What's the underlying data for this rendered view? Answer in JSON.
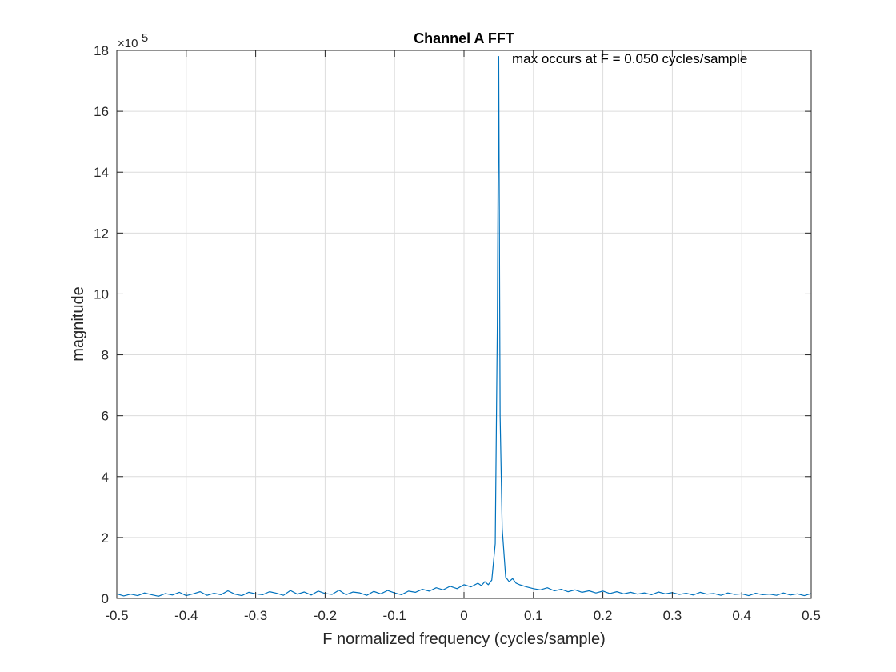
{
  "chart_data": {
    "type": "line",
    "title": "Channel A FFT",
    "xlabel": "F normalized frequency (cycles/sample)",
    "ylabel": "magnitude",
    "xlim": [
      -0.5,
      0.5
    ],
    "ylim": [
      0,
      1800000
    ],
    "xticks": [
      "-0.5",
      "-0.4",
      "-0.3",
      "-0.2",
      "-0.1",
      "0",
      "0.1",
      "0.2",
      "0.3",
      "0.4",
      "0.5"
    ],
    "yticks": [
      "0",
      "2",
      "4",
      "6",
      "8",
      "10",
      "12",
      "14",
      "16",
      "18"
    ],
    "y_exponent_base": "×10",
    "y_exponent_power": "5",
    "grid": true,
    "annotation": "max occurs at F = 0.050 cycles/sample",
    "series_color": "#0072BD",
    "series": [
      {
        "x": [
          -0.5,
          -0.49,
          -0.48,
          -0.47,
          -0.46,
          -0.45,
          -0.44,
          -0.43,
          -0.42,
          -0.41,
          -0.4,
          -0.39,
          -0.38,
          -0.37,
          -0.36,
          -0.35,
          -0.34,
          -0.33,
          -0.32,
          -0.31,
          -0.3,
          -0.29,
          -0.28,
          -0.27,
          -0.26,
          -0.25,
          -0.24,
          -0.23,
          -0.22,
          -0.21,
          -0.2,
          -0.19,
          -0.18,
          -0.17,
          -0.16,
          -0.15,
          -0.14,
          -0.13,
          -0.12,
          -0.11,
          -0.1,
          -0.09,
          -0.08,
          -0.07,
          -0.06,
          -0.05,
          -0.04,
          -0.03,
          -0.02,
          -0.01,
          0.0,
          0.01,
          0.02,
          0.025,
          0.03,
          0.035,
          0.04,
          0.045,
          0.048,
          0.05,
          0.052,
          0.055,
          0.06,
          0.065,
          0.07,
          0.075,
          0.08,
          0.09,
          0.1,
          0.11,
          0.12,
          0.13,
          0.14,
          0.15,
          0.16,
          0.17,
          0.18,
          0.19,
          0.2,
          0.21,
          0.22,
          0.23,
          0.24,
          0.25,
          0.26,
          0.27,
          0.28,
          0.29,
          0.3,
          0.31,
          0.32,
          0.33,
          0.34,
          0.35,
          0.36,
          0.37,
          0.38,
          0.39,
          0.4,
          0.41,
          0.42,
          0.43,
          0.44,
          0.45,
          0.46,
          0.47,
          0.48,
          0.49,
          0.5
        ],
        "y": [
          15000,
          8000,
          14000,
          9000,
          18000,
          12000,
          7000,
          16000,
          11000,
          20000,
          9000,
          15000,
          22000,
          10000,
          17000,
          12000,
          25000,
          14000,
          9000,
          20000,
          15000,
          12000,
          22000,
          17000,
          10000,
          26000,
          14000,
          21000,
          11000,
          24000,
          16000,
          13000,
          27000,
          12000,
          21000,
          18000,
          10000,
          23000,
          15000,
          26000,
          18000,
          12000,
          24000,
          20000,
          30000,
          24000,
          35000,
          28000,
          40000,
          32000,
          45000,
          38000,
          50000,
          42000,
          55000,
          45000,
          60000,
          180000,
          900000,
          1780000,
          600000,
          230000,
          70000,
          55000,
          65000,
          50000,
          45000,
          38000,
          32000,
          28000,
          35000,
          25000,
          30000,
          22000,
          28000,
          20000,
          25000,
          18000,
          24000,
          16000,
          22000,
          15000,
          20000,
          14000,
          18000,
          12000,
          21000,
          15000,
          19000,
          13000,
          17000,
          11000,
          20000,
          14000,
          16000,
          10000,
          18000,
          13000,
          15000,
          9000,
          17000,
          12000,
          14000,
          10000,
          18000,
          11000,
          15000,
          9000,
          16000
        ]
      }
    ]
  }
}
